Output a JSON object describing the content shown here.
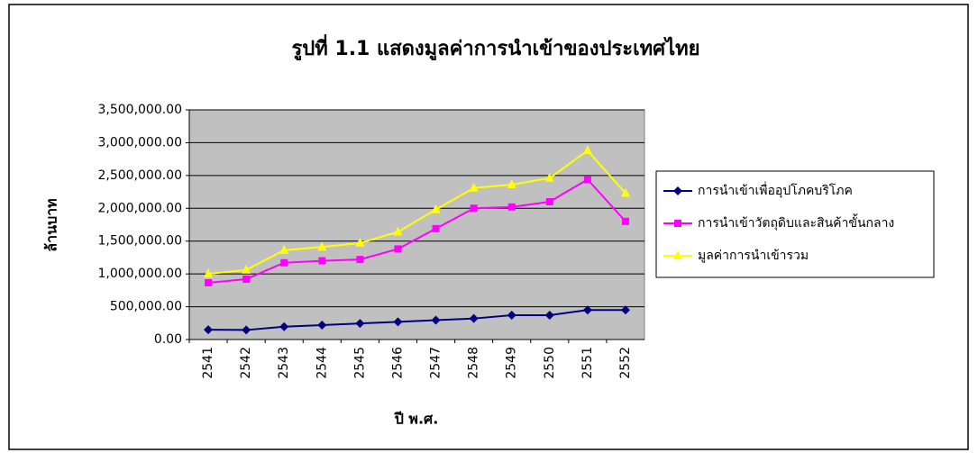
{
  "chart_data": {
    "type": "line",
    "title": "รูปที่ 1.1   แสดงมูลค่าการนำเข้าของประเทศไทย",
    "y_label": "ล้านบาท",
    "x_label": "ปี พ.ศ.",
    "categories": [
      "2541",
      "2542",
      "2543",
      "2544",
      "2545",
      "2546",
      "2547",
      "2548",
      "2549",
      "2550",
      "2551",
      "2552"
    ],
    "series": [
      {
        "name": "การนำเข้าเพื่ออุปโภคบริโภค",
        "color": "#000080",
        "marker": "diamond",
        "values": [
          150000,
          145000,
          195000,
          220000,
          245000,
          270000,
          295000,
          320000,
          370000,
          370000,
          450000,
          450000
        ]
      },
      {
        "name": "การนำเข้าวัตถุดิบและสินค้าขั้นกลาง",
        "color": "#ff00ff",
        "marker": "square",
        "values": [
          865000,
          920000,
          1170000,
          1200000,
          1220000,
          1380000,
          1690000,
          2000000,
          2020000,
          2100000,
          2440000,
          1800000
        ]
      },
      {
        "name": "มูลค่าการนำเข้ารวม",
        "color": "#ffff00",
        "marker": "triangle",
        "values": [
          1000000,
          1060000,
          1360000,
          1410000,
          1470000,
          1640000,
          1980000,
          2310000,
          2360000,
          2460000,
          2880000,
          2230000
        ]
      }
    ],
    "ylim": [
      0,
      3500000
    ],
    "yticks": [
      {
        "value": 0,
        "label": "0.00"
      },
      {
        "value": 500000,
        "label": "500,000.00"
      },
      {
        "value": 1000000,
        "label": "1,000,000.00"
      },
      {
        "value": 1500000,
        "label": "1,500,000.00"
      },
      {
        "value": 2000000,
        "label": "2,000,000.00"
      },
      {
        "value": 2500000,
        "label": "2,500,000.00"
      },
      {
        "value": 3000000,
        "label": "3,000,000.00"
      },
      {
        "value": 3500000,
        "label": "3,500,000.00"
      }
    ],
    "grid": true,
    "legend": "right",
    "plot_background": "#c0c0c0"
  }
}
